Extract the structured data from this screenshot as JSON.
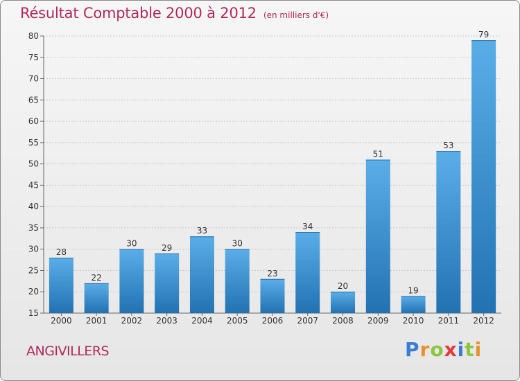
{
  "header": {
    "title": "Résultat Comptable 2000 à 2012",
    "subtitle": "(en milliers d'€)"
  },
  "footer": {
    "commune": "ANGIVILLERS",
    "brand": "Proxiti",
    "brand_letters": [
      {
        "ch": "P",
        "color": "#3a7bd5"
      },
      {
        "ch": "r",
        "color": "#e8912c"
      },
      {
        "ch": "o",
        "color": "#8cc63f"
      },
      {
        "ch": "x",
        "color": "#e23b3b"
      },
      {
        "ch": "i",
        "color": "#3a7bd5"
      },
      {
        "ch": "t",
        "color": "#8cc63f"
      },
      {
        "ch": "i",
        "color": "#e8912c"
      }
    ]
  },
  "colors": {
    "title": "#b12a5b",
    "bar_top": "#5aaee8",
    "bar_bottom": "#2272b2",
    "grid": "#c9c9c9",
    "axis_text": "#333333"
  },
  "chart_data": {
    "type": "bar",
    "title": "Résultat Comptable 2000 à 2012",
    "subtitle": "(en milliers d'€)",
    "categories": [
      "2000",
      "2001",
      "2002",
      "2003",
      "2004",
      "2005",
      "2006",
      "2007",
      "2008",
      "2009",
      "2010",
      "2011",
      "2012"
    ],
    "values": [
      28,
      22,
      30,
      29,
      33,
      30,
      23,
      34,
      20,
      51,
      19,
      53,
      79
    ],
    "yticks": [
      15,
      20,
      25,
      30,
      35,
      40,
      45,
      50,
      55,
      60,
      65,
      70,
      75,
      80
    ],
    "ylim": [
      15,
      80
    ],
    "grid": true,
    "data_labels": true
  }
}
